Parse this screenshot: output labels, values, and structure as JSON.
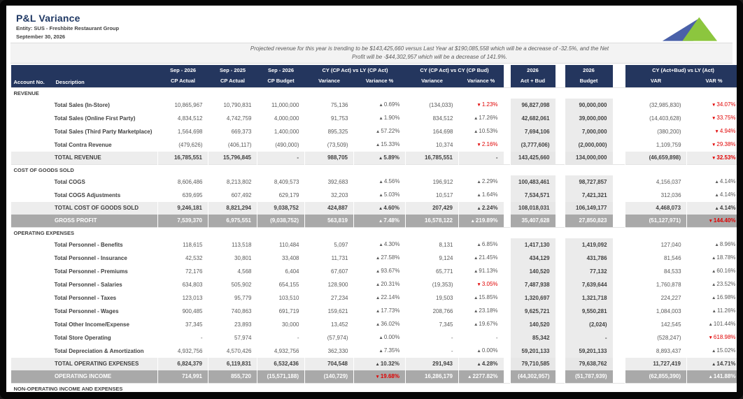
{
  "page": {
    "title": "P&L Variance",
    "entity": "Entity: SUS - Freshbite Restaurant Group",
    "date": "September 30, 2026",
    "note_line1": "Projected revenue for this year is trending to be $143,425,660 versus Last Year at $190,085,558 which will be  a decrease of -32.5%, and the Net",
    "note_line2": "Profit will be -$44,302,957 which will be a decrease of 141.9%."
  },
  "colors": {
    "header_navy": "#24365e",
    "title_navy": "#1f3864",
    "variance_red": "#e00000",
    "grand_row_gray": "#a9a9a9",
    "shade_column_gray": "#ebebeb",
    "logo_blue": "#4a61a9",
    "logo_green": "#8cc63e"
  },
  "logo": {
    "name": "company-logo",
    "shapes": [
      "blue-swoosh-triangle",
      "green-triangle"
    ]
  },
  "table": {
    "header": {
      "account_no": "Account No.",
      "description": "Description",
      "col1_top": "Sep - 2026",
      "col1_bottom": "CP Actual",
      "col2_top": "Sep - 2025",
      "col2_bottom": "CP Actual",
      "col3_top": "Sep - 2026",
      "col3_bottom": "CP Budget",
      "group1": "CY (CP Act) vs LY (CP Act)",
      "group1_sub1": "Variance",
      "group1_sub2": "Variance %",
      "group2": "CY (CP Act) vs CY (CP Bud)",
      "group2_sub1": "Variance",
      "group2_sub2": "Variance %",
      "col8_top": "2026",
      "col8_bottom": "Act + Bud",
      "col9_top": "2026",
      "col9_bottom": "Budget",
      "group3": "CY (Act+Bud) vs LY (Act)",
      "group3_sub1": "VAR",
      "group3_sub2": "VAR %"
    },
    "sections": [
      {
        "name": "REVENUE",
        "rows": [
          {
            "type": "data",
            "label": "Total Sales (In-Store)",
            "cells": [
              "10,865,967",
              "10,790,831",
              "11,000,000",
              "75,136",
              "▲0.69%",
              "(134,033)",
              "▼1.23%",
              "96,827,098",
              "90,000,000",
              "(32,985,830)",
              "▼34.07%"
            ]
          },
          {
            "type": "data",
            "label": "Total Sales (Online First Party)",
            "cells": [
              "4,834,512",
              "4,742,759",
              "4,000,000",
              "91,753",
              "▲1.90%",
              "834,512",
              "▲17.26%",
              "42,682,061",
              "39,000,000",
              "(14,403,628)",
              "▼33.75%"
            ]
          },
          {
            "type": "data",
            "label": "Total Sales (Third Party Marketplace)",
            "cells": [
              "1,564,698",
              "669,373",
              "1,400,000",
              "895,325",
              "▲57.22%",
              "164,698",
              "▲10.53%",
              "7,694,106",
              "7,000,000",
              "(380,200)",
              "▼4.94%"
            ]
          },
          {
            "type": "data",
            "label": "Total Contra Revenue",
            "cells": [
              "(479,626)",
              "(406,117)",
              "(490,000)",
              "(73,509)",
              "▲15.33%",
              "10,374",
              "▼2.16%",
              "(3,777,606)",
              "(2,000,000)",
              "1,109,759",
              "▼29.38%"
            ]
          },
          {
            "type": "total",
            "label": "TOTAL REVENUE",
            "cells": [
              "16,785,551",
              "15,796,845",
              "-",
              "988,705",
              "▲5.89%",
              "16,785,551",
              "-",
              "143,425,660",
              "134,000,000",
              "(46,659,898)",
              "▼32.53%"
            ]
          }
        ]
      },
      {
        "name": "COST OF GOODS SOLD",
        "rows": [
          {
            "type": "data",
            "label": "Total COGS",
            "cells": [
              "8,606,486",
              "8,213,802",
              "8,409,573",
              "392,683",
              "▲4.56%",
              "196,912",
              "▲2.29%",
              "100,483,461",
              "98,727,857",
              "4,156,037",
              "▲4.14%"
            ]
          },
          {
            "type": "data",
            "label": "Total COGS Adjustments",
            "cells": [
              "639,695",
              "607,492",
              "629,179",
              "32,203",
              "▲5.03%",
              "10,517",
              "▲1.64%",
              "7,534,571",
              "7,421,321",
              "312,036",
              "▲4.14%"
            ]
          },
          {
            "type": "total",
            "label": "TOTAL COST OF GOODS SOLD",
            "cells": [
              "9,246,181",
              "8,821,294",
              "9,038,752",
              "424,887",
              "▲4.60%",
              "207,429",
              "▲2.24%",
              "108,018,031",
              "106,149,177",
              "4,468,073",
              "▲4.14%"
            ]
          },
          {
            "type": "grand",
            "label": "GROSS PROFIT",
            "cells": [
              "7,539,370",
              "6,975,551",
              "(9,038,752)",
              "563,819",
              "▲7.48%",
              "16,578,122",
              "▲219.89%",
              "35,407,628",
              "27,850,823",
              "(51,127,971)",
              "▼144.40%"
            ]
          }
        ]
      },
      {
        "name": "OPERATING EXPENSES",
        "rows": [
          {
            "type": "data",
            "label": "Total Personnel - Benefits",
            "cells": [
              "118,615",
              "113,518",
              "110,484",
              "5,097",
              "▲4.30%",
              "8,131",
              "▲6.85%",
              "1,417,130",
              "1,419,092",
              "127,040",
              "▲8.96%"
            ]
          },
          {
            "type": "data",
            "label": "Total Personnel - Insurance",
            "cells": [
              "42,532",
              "30,801",
              "33,408",
              "11,731",
              "▲27.58%",
              "9,124",
              "▲21.45%",
              "434,129",
              "431,786",
              "81,546",
              "▲18.78%"
            ]
          },
          {
            "type": "data",
            "label": "Total Personnel - Premiums",
            "cells": [
              "72,176",
              "4,568",
              "6,404",
              "67,607",
              "▲93.67%",
              "65,771",
              "▲91.13%",
              "140,520",
              "77,132",
              "84,533",
              "▲60.16%"
            ]
          },
          {
            "type": "data",
            "label": "Total Personnel - Salaries",
            "cells": [
              "634,803",
              "505,902",
              "654,155",
              "128,900",
              "▲20.31%",
              "(19,353)",
              "▼3.05%",
              "7,487,938",
              "7,639,644",
              "1,760,878",
              "▲23.52%"
            ]
          },
          {
            "type": "data",
            "label": "Total Personnel - Taxes",
            "cells": [
              "123,013",
              "95,779",
              "103,510",
              "27,234",
              "▲22.14%",
              "19,503",
              "▲15.85%",
              "1,320,697",
              "1,321,718",
              "224,227",
              "▲16.98%"
            ]
          },
          {
            "type": "data",
            "label": "Total Personnel - Wages",
            "cells": [
              "900,485",
              "740,863",
              "691,719",
              "159,621",
              "▲17.73%",
              "208,766",
              "▲23.18%",
              "9,625,721",
              "9,550,281",
              "1,084,003",
              "▲11.26%"
            ]
          },
          {
            "type": "data",
            "label": "Total Other Income/Expense",
            "cells": [
              "37,345",
              "23,893",
              "30,000",
              "13,452",
              "▲36.02%",
              "7,345",
              "▲19.67%",
              "140,520",
              "(2,024)",
              "142,545",
              "▲101.44%"
            ]
          },
          {
            "type": "data",
            "label": "Total Store Operating",
            "cells": [
              "-",
              "57,974",
              "-",
              "(57,974)",
              "▲0.00%",
              "-",
              "-",
              "85,342",
              "-",
              "(528,247)",
              "▼618.98%"
            ]
          },
          {
            "type": "data",
            "label": "Total Depreciation & Amortization",
            "cells": [
              "4,932,756",
              "4,570,426",
              "4,932,756",
              "362,330",
              "▲7.35%",
              "-",
              "▲0.00%",
              "59,201,133",
              "59,201,133",
              "8,893,437",
              "▲15.02%"
            ]
          },
          {
            "type": "total",
            "label": "TOTAL OPERATING EXPENSES",
            "cells": [
              "6,824,379",
              "6,119,831",
              "6,532,436",
              "704,548",
              "▲10.32%",
              "291,943",
              "▲4.28%",
              "79,710,585",
              "79,638,762",
              "11,727,419",
              "▲14.71%"
            ]
          },
          {
            "type": "grand",
            "label": "OPERATING INCOME",
            "cells": [
              "714,991",
              "855,720",
              "(15,571,188)",
              "(140,729)",
              "▼19.68%",
              "16,286,179",
              "▲2277.82%",
              "(44,302,957)",
              "(51,787,939)",
              "(62,855,390)",
              "▲141.88%"
            ]
          }
        ]
      },
      {
        "name": "NON-OPERATING INCOME AND EXPENSES",
        "rows": []
      }
    ]
  }
}
